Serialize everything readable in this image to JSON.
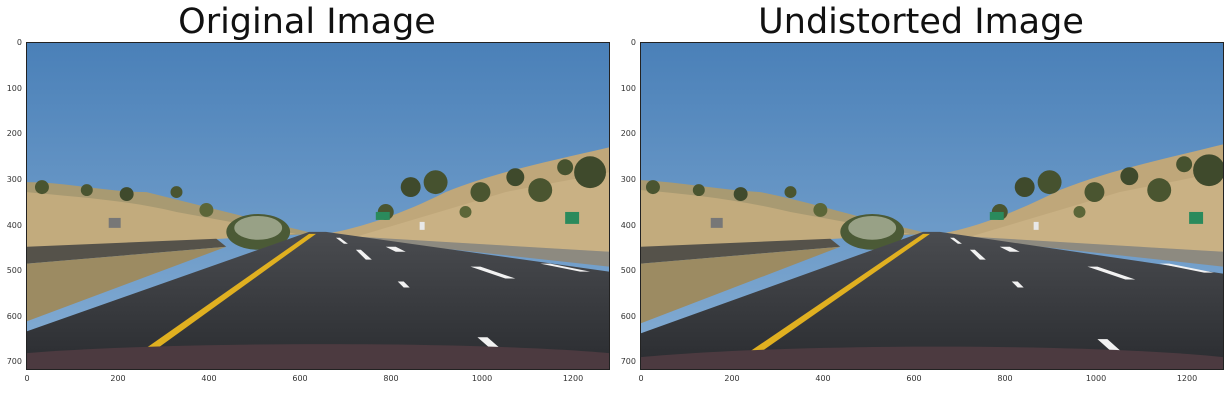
{
  "panels": [
    {
      "title": "Original Image",
      "image_description": "Road scene from a car dashcam: blue sky, dry grassy hills with trees, a highway with a yellow left lane line and dashed white lane markings, green road signs on the right.",
      "y_ticks": [
        "0",
        "100",
        "200",
        "300",
        "400",
        "500",
        "600",
        "700"
      ],
      "x_ticks": [
        "0",
        "200",
        "400",
        "600",
        "800",
        "1000",
        "1200"
      ]
    },
    {
      "title": "Undistorted Image",
      "image_description": "Same road scene after lens distortion correction.",
      "y_ticks": [
        "0",
        "100",
        "200",
        "300",
        "400",
        "500",
        "600",
        "700"
      ],
      "x_ticks": [
        "0",
        "200",
        "400",
        "600",
        "800",
        "1000",
        "1200"
      ]
    }
  ],
  "colors": {
    "sky_top": "#4a80b8",
    "sky_bottom": "#7aa6cf",
    "hill": "#b8a37a",
    "road": "#2e3034",
    "yellow_line": "#e0b020",
    "white_line": "#f2f2f2",
    "tree": "#3f4a2c",
    "sign": "#2a8a5c"
  }
}
